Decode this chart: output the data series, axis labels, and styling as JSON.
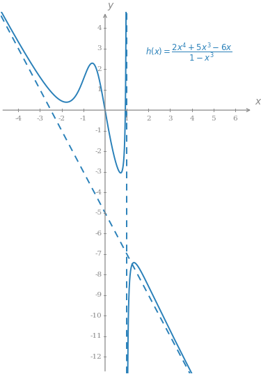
{
  "xlim": [
    -4.8,
    6.8
  ],
  "ylim": [
    -12.8,
    4.8
  ],
  "xticks": [
    -4,
    -3,
    -2,
    -1,
    1,
    2,
    3,
    4,
    5,
    6
  ],
  "yticks": [
    -12,
    -11,
    -10,
    -9,
    -8,
    -7,
    -6,
    -5,
    -4,
    -3,
    -2,
    -1,
    1,
    2,
    3,
    4
  ],
  "vertical_asymptote": 1.0,
  "oblique_asymptote_slope": -2.0,
  "oblique_asymptote_intercept": -5.0,
  "curve_color": "#2980b9",
  "asymptote_color": "#2980b9",
  "axis_color": "#888888",
  "label_color": "#2980b9",
  "background_color": "#ffffff",
  "figsize": [
    3.75,
    5.37
  ],
  "dpi": 100
}
